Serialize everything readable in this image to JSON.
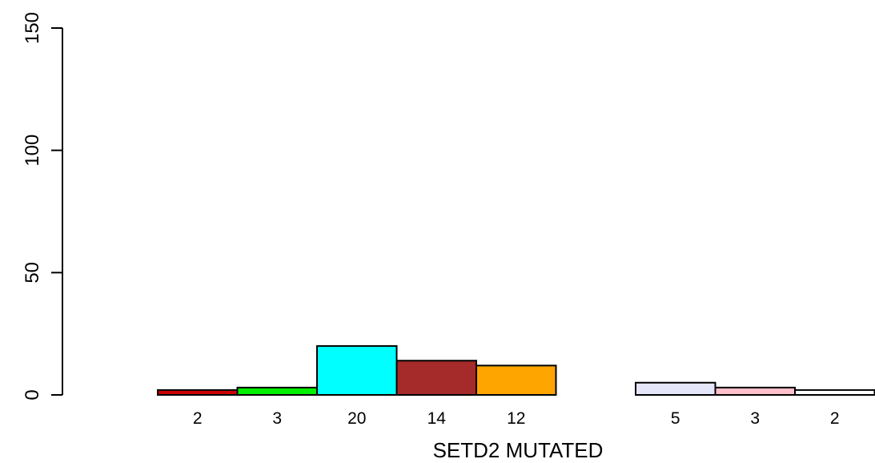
{
  "chart_data": {
    "type": "bar",
    "xlabel": "SETD2 MUTATED",
    "ylabel": "",
    "ylim": [
      0,
      150
    ],
    "yticks": [
      0,
      50,
      100,
      150
    ],
    "grid": false,
    "legend": "none",
    "bars": [
      {
        "value": 2,
        "label": "2",
        "color": "#cc0000"
      },
      {
        "value": 3,
        "label": "3",
        "color": "#00ee00"
      },
      {
        "value": 20,
        "label": "20",
        "color": "#00ffff"
      },
      {
        "value": 14,
        "label": "14",
        "color": "#a52a2a"
      },
      {
        "value": 12,
        "label": "12",
        "color": "#ffa500"
      },
      {
        "value": 0,
        "label": "",
        "color": "#ffffff"
      },
      {
        "value": 5,
        "label": "5",
        "color": "#e6e6fa"
      },
      {
        "value": 3,
        "label": "3",
        "color": "#ffc0cb"
      },
      {
        "value": 2,
        "label": "2",
        "color": "#ffffff"
      }
    ]
  }
}
